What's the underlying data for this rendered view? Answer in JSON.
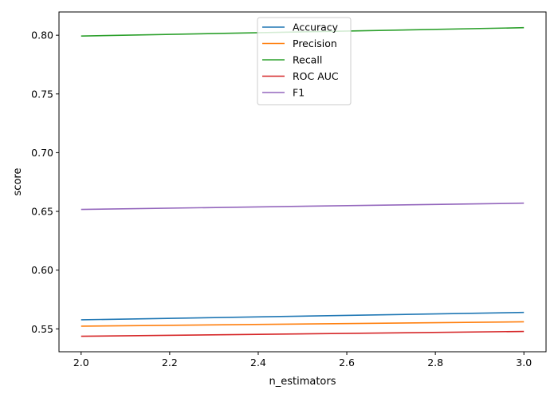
{
  "chart_data": {
    "type": "line",
    "title": "",
    "xlabel": "n_estimators",
    "ylabel": "score",
    "xlim": [
      1.95,
      3.05
    ],
    "ylim": [
      0.5305,
      0.8198
    ],
    "x_ticks": [
      2.0,
      2.2,
      2.4,
      2.6,
      2.8,
      3.0
    ],
    "x_tick_labels": [
      "2.0",
      "2.2",
      "2.4",
      "2.6",
      "2.8",
      "3.0"
    ],
    "y_ticks": [
      0.55,
      0.6,
      0.65,
      0.7,
      0.75,
      0.8
    ],
    "y_tick_labels": [
      "0.55",
      "0.60",
      "0.65",
      "0.70",
      "0.75",
      "0.80"
    ],
    "grid": false,
    "legend": {
      "position": "top-center"
    },
    "x": [
      2,
      3
    ],
    "series": [
      {
        "name": "Accuracy",
        "color": "#1f77b4",
        "values": [
          0.5577,
          0.564
        ]
      },
      {
        "name": "Precision",
        "color": "#ff7f0e",
        "values": [
          0.5523,
          0.556
        ]
      },
      {
        "name": "Recall",
        "color": "#2ca02c",
        "values": [
          0.7993,
          0.8064
        ]
      },
      {
        "name": "ROC AUC",
        "color": "#d62728",
        "values": [
          0.5437,
          0.5478
        ]
      },
      {
        "name": "F1",
        "color": "#9467bd",
        "values": [
          0.6517,
          0.657
        ]
      }
    ]
  }
}
